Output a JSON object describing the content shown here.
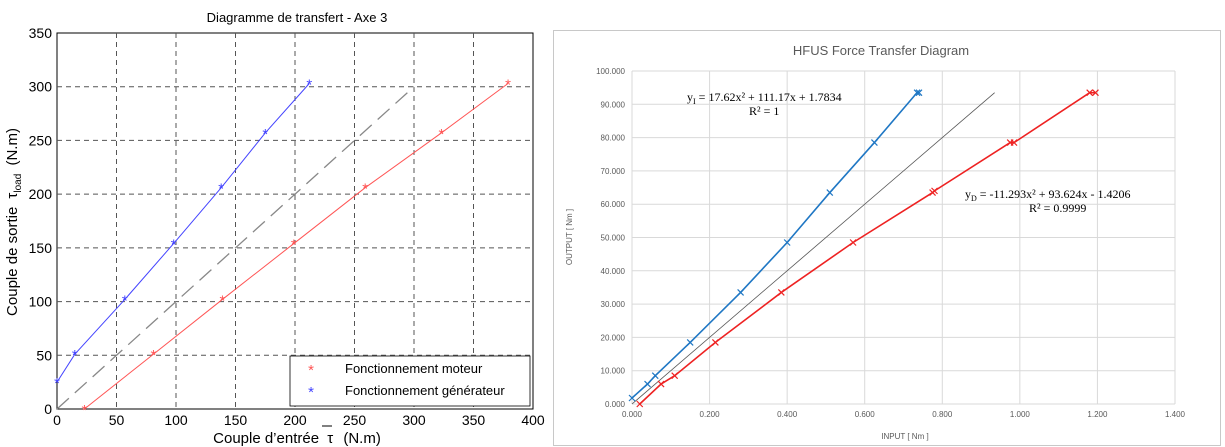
{
  "charts": [
    {
      "id": "left",
      "title": "Diagramme de transfert - Axe 3",
      "xlabel_main": "Couple d’entrée",
      "xlabel_sym": "τ",
      "xlabel_unit": "(N.m)",
      "ylabel_main": "Couple de sortie",
      "ylabel_sym": "τ",
      "ylabel_sub": "load",
      "ylabel_unit": "(N.m)",
      "grid": true,
      "legend_position": "bottom-right"
    },
    {
      "id": "right",
      "title": "HFUS Force Transfer Diagram",
      "xlabel": "INPUT [ Nm ]",
      "ylabel": "OUTPUT [ Nm ]",
      "grid": true,
      "annotation_top": {
        "y": "y",
        "sub": "I",
        "eq": " = 17.62x² + 111.17x + 1.7834",
        "r2": "R² = 1"
      },
      "annotation_bottom": {
        "y": "y",
        "sub": "D",
        "eq": " = -11.293x² + 93.624x - 1.4206",
        "r2": "R² = 0.9999"
      }
    }
  ],
  "chart_data": [
    {
      "type": "scatter",
      "title": "Diagramme de transfert - Axe 3",
      "xlabel": "Couple d’entrée τ (N.m)",
      "ylabel": "Couple de sortie τload (N.m)",
      "xlim": [
        0,
        400
      ],
      "ylim": [
        0,
        350
      ],
      "xticks": [
        "0",
        "50",
        "100",
        "150",
        "200",
        "250",
        "300",
        "350",
        "400"
      ],
      "yticks": [
        "0",
        "50",
        "100",
        "150",
        "200",
        "250",
        "300",
        "350"
      ],
      "series": [
        {
          "name": "Fonctionnement moteur",
          "color": "#ff5555",
          "marker": "*",
          "x": [
            23,
            81,
            139,
            199,
            259,
            323,
            379
          ],
          "y": [
            0,
            51,
            102,
            154,
            206,
            257,
            303
          ]
        },
        {
          "name": "Fonctionnement générateur",
          "color": "#4444ff",
          "marker": "*",
          "x": [
            0,
            15,
            57,
            98,
            138,
            175,
            212
          ],
          "y": [
            25,
            51,
            102,
            154,
            206,
            257,
            303
          ]
        }
      ],
      "reference_line": {
        "x": [
          0,
          300
        ],
        "y": [
          0,
          300
        ],
        "style": "dashed",
        "color": "#888888"
      }
    },
    {
      "type": "scatter",
      "title": "HFUS Force Transfer Diagram",
      "xlabel": "INPUT [ Nm ]",
      "ylabel": "OUTPUT [ Nm ]",
      "xlim": [
        0,
        1.4
      ],
      "ylim": [
        0,
        100
      ],
      "xticks": [
        "0.000",
        "0.200",
        "0.400",
        "0.600",
        "0.800",
        "1.000",
        "1.200",
        "1.400"
      ],
      "yticks": [
        "0.000",
        "10.000",
        "20.000",
        "30.000",
        "40.000",
        "50.000",
        "60.000",
        "70.000",
        "80.000",
        "90.000",
        "100.000"
      ],
      "series": [
        {
          "color": "#1f77c4",
          "marker": "x",
          "x": [
            0.0,
            0.04,
            0.06,
            0.15,
            0.28,
            0.4,
            0.51,
            0.625,
            0.735,
            0.74
          ],
          "y": [
            1.8,
            6.0,
            8.5,
            18.5,
            33.5,
            48.5,
            63.5,
            78.5,
            93.5,
            93.5
          ]
        },
        {
          "color": "#ee2222",
          "marker": "x",
          "x": [
            0.02,
            0.075,
            0.11,
            0.215,
            0.385,
            0.57,
            0.775,
            0.78,
            0.975,
            0.985,
            1.18,
            1.195
          ],
          "y": [
            0.0,
            6.0,
            8.5,
            18.5,
            33.5,
            48.5,
            63.5,
            64.0,
            78.5,
            78.5,
            93.5,
            93.5
          ]
        }
      ],
      "reference_line": {
        "x": [
          0,
          0.935
        ],
        "y": [
          0,
          93.5
        ],
        "color": "#555555"
      }
    }
  ]
}
